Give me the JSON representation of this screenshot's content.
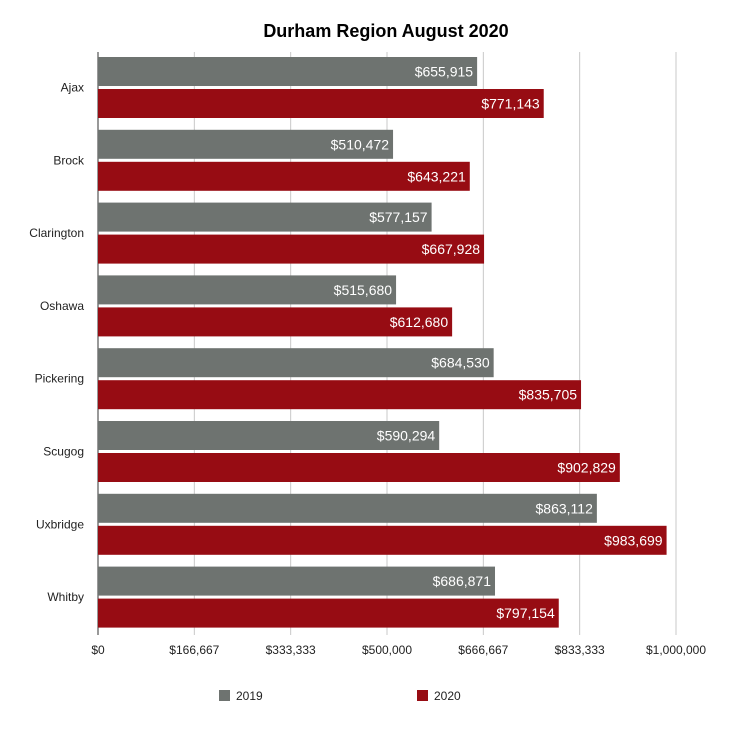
{
  "chart_data": {
    "type": "bar",
    "orientation": "horizontal",
    "title": "Durham Region August 2020",
    "xlabel": "",
    "ylabel": "",
    "categories": [
      "Ajax",
      "Brock",
      "Clarington",
      "Oshawa",
      "Pickering",
      "Scugog",
      "Uxbridge",
      "Whitby"
    ],
    "series": [
      {
        "name": "2019",
        "color": "#6e7370",
        "values": [
          655915,
          510472,
          577157,
          515680,
          684530,
          590294,
          863112,
          686871
        ],
        "labels": [
          "$655,915",
          "$510,472",
          "$577,157",
          "$515,680",
          "$684,530",
          "$590,294",
          "$863,112",
          "$686,871"
        ]
      },
      {
        "name": "2020",
        "color": "#970c13",
        "values": [
          771143,
          643221,
          667928,
          612680,
          835705,
          902829,
          983699,
          797154
        ],
        "labels": [
          "$771,143",
          "$643,221",
          "$667,928",
          "$612,680",
          "$835,705",
          "$902,829",
          "$983,699",
          "$797,154"
        ]
      }
    ],
    "xlim": [
      0,
      1000000
    ],
    "ticks": [
      0,
      166667,
      333333,
      500000,
      666667,
      833333,
      1000000
    ],
    "tick_labels": [
      "$0",
      "$166,667",
      "$333,333",
      "$500,000",
      "$666,667",
      "$833,333",
      "$1,000,000"
    ],
    "grid": true,
    "legend_position": "bottom"
  }
}
